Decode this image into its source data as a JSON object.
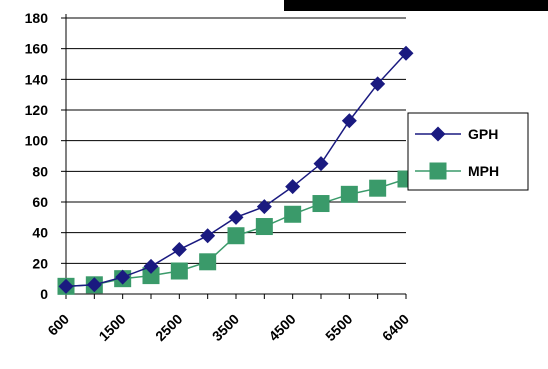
{
  "chart_data": {
    "type": "line",
    "x_tick_labels": [
      "600",
      "1500",
      "2500",
      "3500",
      "4500",
      "5500",
      "6400"
    ],
    "ylim": [
      0,
      180
    ],
    "y_ticks": [
      0,
      20,
      40,
      60,
      80,
      100,
      120,
      140,
      160,
      180
    ],
    "grid": true,
    "legend_position": "right",
    "series": [
      {
        "name": "GPH",
        "color": "#1a1a80",
        "marker": "diamond",
        "values": [
          5,
          6,
          11,
          18,
          29,
          38,
          50,
          57,
          70,
          85,
          113,
          137,
          157
        ]
      },
      {
        "name": "MPH",
        "color": "#3a9a6a",
        "marker": "square",
        "values": [
          5,
          6,
          10,
          12,
          15,
          21,
          38,
          44,
          52,
          59,
          65,
          69,
          75
        ]
      }
    ]
  }
}
